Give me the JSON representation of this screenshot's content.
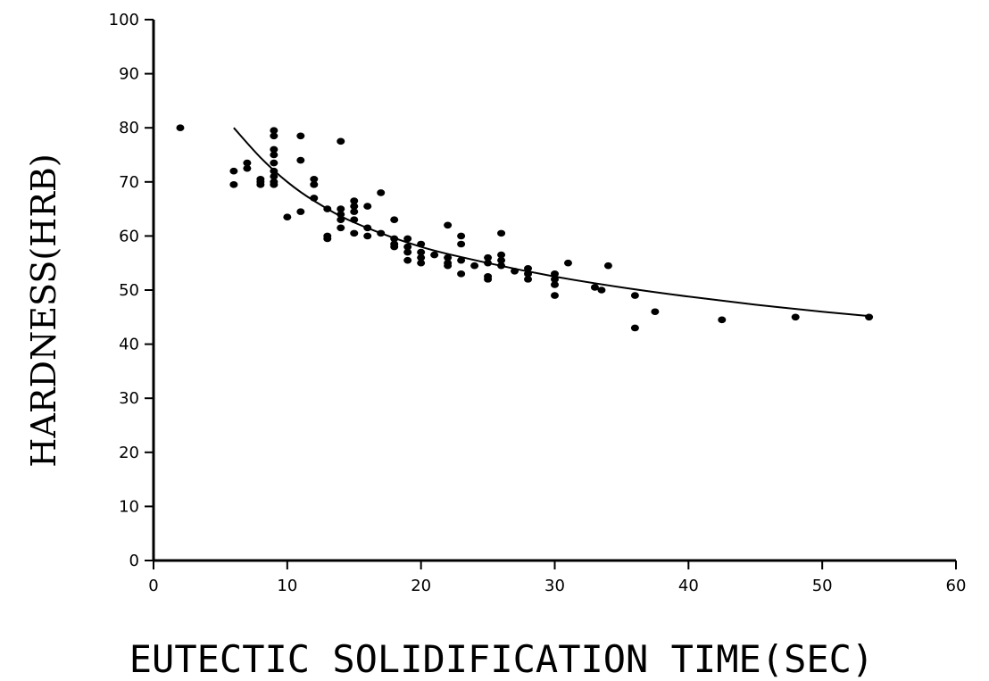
{
  "chart_data": {
    "type": "scatter",
    "xlabel": "EUTECTIC SOLIDIFICATION TIME(SEC)",
    "ylabel": "HARDNESS(HRB)",
    "xlim": [
      0,
      60
    ],
    "ylim": [
      0,
      100
    ],
    "x_ticks": [
      "0",
      "10",
      "20",
      "30",
      "40",
      "50",
      "60"
    ],
    "y_ticks": [
      "0",
      "10",
      "20",
      "30",
      "40",
      "50",
      "60",
      "70",
      "80",
      "90",
      "100"
    ],
    "grid": false,
    "legend": "none",
    "colors": {
      "marker": "#000000",
      "curve": "#000000",
      "axis": "#000000",
      "background": "#ffffff"
    },
    "points": [
      {
        "x": 2,
        "y": 80
      },
      {
        "x": 6,
        "y": 72
      },
      {
        "x": 6,
        "y": 69.5
      },
      {
        "x": 7,
        "y": 73.5
      },
      {
        "x": 7,
        "y": 72.5
      },
      {
        "x": 8,
        "y": 70.5
      },
      {
        "x": 8,
        "y": 70
      },
      {
        "x": 8,
        "y": 69.5
      },
      {
        "x": 9,
        "y": 79.5
      },
      {
        "x": 9,
        "y": 78.5
      },
      {
        "x": 9,
        "y": 76
      },
      {
        "x": 9,
        "y": 75
      },
      {
        "x": 9,
        "y": 73.5
      },
      {
        "x": 9,
        "y": 72
      },
      {
        "x": 9,
        "y": 71
      },
      {
        "x": 9,
        "y": 70
      },
      {
        "x": 9,
        "y": 69.5
      },
      {
        "x": 10,
        "y": 63.5
      },
      {
        "x": 11,
        "y": 78.5
      },
      {
        "x": 11,
        "y": 74
      },
      {
        "x": 11,
        "y": 64.5
      },
      {
        "x": 12,
        "y": 70.5
      },
      {
        "x": 12,
        "y": 69.5
      },
      {
        "x": 12,
        "y": 67
      },
      {
        "x": 13,
        "y": 65
      },
      {
        "x": 13,
        "y": 60
      },
      {
        "x": 13,
        "y": 59.5
      },
      {
        "x": 14,
        "y": 77.5
      },
      {
        "x": 14,
        "y": 65
      },
      {
        "x": 14,
        "y": 64
      },
      {
        "x": 14,
        "y": 63
      },
      {
        "x": 14,
        "y": 61.5
      },
      {
        "x": 15,
        "y": 66.5
      },
      {
        "x": 15,
        "y": 65.5
      },
      {
        "x": 15,
        "y": 64.5
      },
      {
        "x": 15,
        "y": 63
      },
      {
        "x": 15,
        "y": 60.5
      },
      {
        "x": 16,
        "y": 65.5
      },
      {
        "x": 16,
        "y": 61.5
      },
      {
        "x": 16,
        "y": 60
      },
      {
        "x": 17,
        "y": 68
      },
      {
        "x": 17,
        "y": 60.5
      },
      {
        "x": 18,
        "y": 63
      },
      {
        "x": 18,
        "y": 59.5
      },
      {
        "x": 18,
        "y": 58.5
      },
      {
        "x": 18,
        "y": 58
      },
      {
        "x": 19,
        "y": 59.5
      },
      {
        "x": 19,
        "y": 58
      },
      {
        "x": 19,
        "y": 57
      },
      {
        "x": 19,
        "y": 55.5
      },
      {
        "x": 20,
        "y": 58.5
      },
      {
        "x": 20,
        "y": 57
      },
      {
        "x": 20,
        "y": 56
      },
      {
        "x": 20,
        "y": 55
      },
      {
        "x": 21,
        "y": 56.5
      },
      {
        "x": 22,
        "y": 62
      },
      {
        "x": 22,
        "y": 56
      },
      {
        "x": 22,
        "y": 55
      },
      {
        "x": 22,
        "y": 54.5
      },
      {
        "x": 23,
        "y": 60
      },
      {
        "x": 23,
        "y": 58.5
      },
      {
        "x": 23,
        "y": 55.5
      },
      {
        "x": 23,
        "y": 53
      },
      {
        "x": 24,
        "y": 54.5
      },
      {
        "x": 25,
        "y": 56
      },
      {
        "x": 25,
        "y": 55
      },
      {
        "x": 25,
        "y": 52.5
      },
      {
        "x": 25,
        "y": 52
      },
      {
        "x": 26,
        "y": 60.5
      },
      {
        "x": 26,
        "y": 56.5
      },
      {
        "x": 26,
        "y": 55.5
      },
      {
        "x": 26,
        "y": 54.5
      },
      {
        "x": 27,
        "y": 53.5
      },
      {
        "x": 28,
        "y": 54
      },
      {
        "x": 28,
        "y": 53
      },
      {
        "x": 28,
        "y": 52
      },
      {
        "x": 30,
        "y": 53
      },
      {
        "x": 30,
        "y": 52
      },
      {
        "x": 30,
        "y": 51
      },
      {
        "x": 30,
        "y": 49
      },
      {
        "x": 31,
        "y": 55
      },
      {
        "x": 33,
        "y": 50.5
      },
      {
        "x": 33.5,
        "y": 50
      },
      {
        "x": 34,
        "y": 54.5
      },
      {
        "x": 36,
        "y": 49
      },
      {
        "x": 36,
        "y": 43
      },
      {
        "x": 37.5,
        "y": 46
      },
      {
        "x": 42.5,
        "y": 44.5
      },
      {
        "x": 48,
        "y": 45
      },
      {
        "x": 53.5,
        "y": 45
      }
    ],
    "fit_curve": [
      {
        "x": 6,
        "y": 80
      },
      {
        "x": 8,
        "y": 74.5
      },
      {
        "x": 10,
        "y": 70
      },
      {
        "x": 12,
        "y": 66.5
      },
      {
        "x": 15,
        "y": 62.5
      },
      {
        "x": 20,
        "y": 58
      },
      {
        "x": 25,
        "y": 55
      },
      {
        "x": 30,
        "y": 52.5
      },
      {
        "x": 35,
        "y": 50.5
      },
      {
        "x": 40,
        "y": 48.8
      },
      {
        "x": 45,
        "y": 47.3
      },
      {
        "x": 50,
        "y": 46
      },
      {
        "x": 53.5,
        "y": 45.2
      }
    ]
  }
}
